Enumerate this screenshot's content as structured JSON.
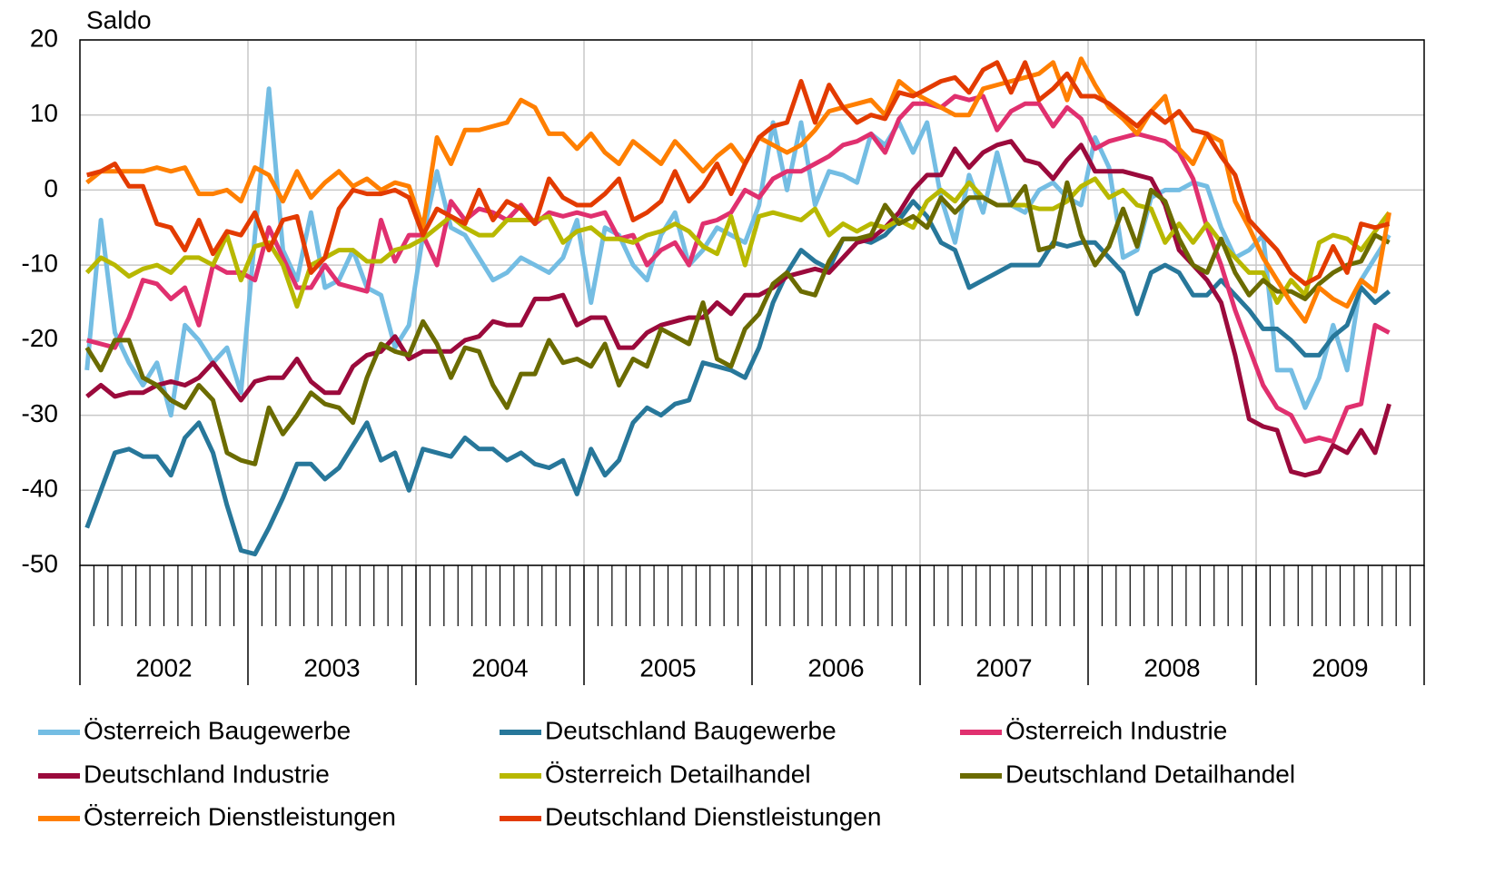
{
  "chart_data": {
    "type": "line",
    "y_label": "Saldo",
    "ylim": [
      -50,
      20
    ],
    "yticks": [
      -50,
      -40,
      -30,
      -20,
      -10,
      0,
      10,
      20
    ],
    "grid": true,
    "categories": [
      null,
      null,
      null,
      null,
      null,
      "2002",
      null,
      null,
      null,
      null,
      null,
      null,
      null,
      null,
      null,
      null,
      null,
      "2003",
      null,
      null,
      null,
      null,
      null,
      null,
      null,
      null,
      null,
      null,
      null,
      "2004",
      null,
      null,
      null,
      null,
      null,
      null,
      null,
      null,
      null,
      null,
      null,
      "2005",
      null,
      null,
      null,
      null,
      null,
      null,
      null,
      null,
      null,
      null,
      null,
      "2006",
      null,
      null,
      null,
      null,
      null,
      null,
      null,
      null,
      null,
      null,
      null,
      "2007",
      null,
      null,
      null,
      null,
      null,
      null,
      null,
      null,
      null,
      null,
      null,
      "2008",
      null,
      null,
      null,
      null,
      null,
      null,
      null,
      null,
      null,
      null,
      null,
      "2009",
      null,
      null,
      null,
      null
    ],
    "series": [
      {
        "name": "Österreich Baugewerbe",
        "color": "#74bde3",
        "values": [
          -24,
          -4,
          -19,
          -23,
          -26,
          -23,
          -30,
          -18,
          -20,
          -23,
          -21,
          -27,
          -6,
          13.5,
          -8,
          -12,
          -3,
          -13,
          -12,
          -8,
          -13,
          -14,
          -21,
          -18,
          -6,
          2.5,
          -5,
          -6,
          -9,
          -12,
          -11,
          -9,
          -10,
          -11,
          -9,
          -4,
          -15,
          -5,
          -6,
          -10,
          -12,
          -6,
          -3,
          -10,
          -8,
          -5,
          -6,
          -7,
          -2,
          9,
          0,
          9,
          -2,
          2.5,
          2,
          1,
          7.5,
          6,
          9,
          5,
          9,
          -1,
          -7,
          2,
          -3,
          5,
          -2,
          -3,
          0,
          1,
          -1,
          -2,
          7,
          3,
          -9,
          -8,
          -1,
          0,
          0,
          1,
          0.5,
          -5,
          -9,
          -8,
          -6,
          -24,
          -24,
          -29,
          -25,
          -18,
          -24,
          -12,
          -9,
          -6
        ]
      },
      {
        "name": "Deutschland Baugewerbe",
        "color": "#27779a",
        "values": [
          -45,
          -40,
          -35,
          -34.5,
          -35.5,
          -35.5,
          -38,
          -33,
          -31,
          -35,
          -42,
          -48,
          -48.5,
          -45,
          -41,
          -36.5,
          -36.5,
          -38.5,
          -37,
          -34,
          -31,
          -36,
          -35,
          -40,
          -34.5,
          -35,
          -35.5,
          -33,
          -34.5,
          -34.5,
          -36,
          -35,
          -36.5,
          -37,
          -36,
          -40.5,
          -34.5,
          -38,
          -36,
          -31,
          -29,
          -30,
          -28.5,
          -28,
          -23,
          -23.5,
          -24,
          -25,
          -21,
          -15,
          -11,
          -8,
          -9.5,
          -10.5,
          -6.5,
          -6.5,
          -7,
          -6,
          -4,
          -1.5,
          -3.5,
          -7,
          -8,
          -13,
          -12,
          -11,
          -10,
          -10,
          -10,
          -7,
          -7.5,
          -7,
          -7,
          -9,
          -11,
          -16.5,
          -11,
          -10,
          -11,
          -14,
          -14,
          -12,
          -14,
          -16,
          -18.5,
          -18.5,
          -20,
          -22,
          -22,
          -19.5,
          -18,
          -13,
          -15,
          -13.5
        ]
      },
      {
        "name": "Österreich Industrie",
        "color": "#e0306f",
        "values": [
          -20,
          -20.5,
          -21,
          -17,
          -12,
          -12.5,
          -14.5,
          -13,
          -18,
          -10,
          -11,
          -11,
          -12,
          -5,
          -9,
          -13,
          -13,
          -10,
          -12.5,
          -13,
          -13.5,
          -4,
          -9.5,
          -6,
          -6,
          -10,
          -1.5,
          -4,
          -2.5,
          -3,
          -4,
          -2,
          -4.5,
          -3,
          -3.5,
          -3,
          -3.5,
          -3,
          -6.5,
          -6,
          -10,
          -8,
          -7,
          -10,
          -4.5,
          -4,
          -3,
          0,
          -1,
          1.5,
          2.5,
          2.5,
          3.5,
          4.5,
          6,
          6.5,
          7.5,
          5,
          9.5,
          11.5,
          11.5,
          11,
          12.5,
          12,
          12.5,
          8,
          10.5,
          11.5,
          11.5,
          8.5,
          11,
          9.5,
          5.5,
          6.5,
          7,
          7.5,
          7,
          6.5,
          5,
          1.5,
          -5,
          -10,
          -16,
          -21,
          -26,
          -29,
          -30,
          -33.5,
          -33,
          -33.5,
          -29,
          -28.5,
          -18,
          -19
        ]
      },
      {
        "name": "Deutschland Industrie",
        "color": "#9b0a3c",
        "values": [
          -27.5,
          -26,
          -27.5,
          -27,
          -27,
          -26,
          -25.5,
          -26,
          -25,
          -23,
          -25.5,
          -28,
          -25.5,
          -25,
          -25,
          -22.5,
          -25.5,
          -27,
          -27,
          -23.5,
          -22,
          -21.5,
          -19.5,
          -22.5,
          -21.5,
          -21.5,
          -21.5,
          -20,
          -19.5,
          -17.5,
          -18,
          -18,
          -14.5,
          -14.5,
          -14,
          -18,
          -17,
          -17,
          -21,
          -21,
          -19,
          -18,
          -17.5,
          -17,
          -17,
          -15,
          -16.5,
          -14,
          -14,
          -13,
          -11.5,
          -11,
          -10.5,
          -11,
          -9,
          -7,
          -6.5,
          -5,
          -3,
          0,
          2,
          2,
          5.5,
          3,
          5,
          6,
          6.5,
          4,
          3.5,
          1.5,
          4,
          6,
          2.5,
          2.5,
          2.5,
          2,
          1.5,
          -2,
          -8,
          -10,
          -12,
          -15,
          -22,
          -30.5,
          -31.5,
          -32,
          -37.5,
          -38,
          -37.5,
          -34,
          -35,
          -32,
          -35,
          -28.5
        ]
      },
      {
        "name": "Österreich Detailhandel",
        "color": "#b8b800",
        "values": [
          -11,
          -9,
          -10,
          -11.5,
          -10.5,
          -10,
          -11,
          -9,
          -9,
          -10,
          -6,
          -12,
          -7.5,
          -7,
          -10,
          -15.5,
          -10,
          -9,
          -8,
          -8,
          -9.5,
          -9.5,
          -8,
          -7.5,
          -6.5,
          -5,
          -3.5,
          -5,
          -6,
          -6,
          -4,
          -4,
          -4,
          -3.5,
          -7,
          -5.5,
          -5,
          -6.5,
          -6.5,
          -7,
          -6,
          -5.5,
          -4.5,
          -5.5,
          -7.5,
          -8.5,
          -3.5,
          -10,
          -3.5,
          -3,
          -3.5,
          -4,
          -2.5,
          -6,
          -4.5,
          -5.5,
          -4.5,
          -5,
          -4,
          -5,
          -1.5,
          0,
          -1.5,
          1,
          -1,
          -2,
          -2,
          -2,
          -2.5,
          -2.5,
          -1.5,
          0.5,
          1.5,
          -1,
          0,
          -2,
          -2.5,
          -7,
          -4.5,
          -7,
          -4.5,
          -7,
          -9,
          -11,
          -11,
          -15,
          -12,
          -14,
          -7,
          -6,
          -6.5,
          -8,
          -5.5,
          -3
        ]
      },
      {
        "name": "Deutschland Detailhandel",
        "color": "#6b6b00",
        "values": [
          -21,
          -24,
          -20,
          -20,
          -25,
          -26,
          -28,
          -29,
          -26,
          -28,
          -35,
          -36,
          -36.5,
          -29,
          -32.5,
          -30,
          -27,
          -28.5,
          -29,
          -31,
          -25,
          -20.5,
          -21.5,
          -22,
          -17.5,
          -20.5,
          -25,
          -21,
          -21.5,
          -26,
          -29,
          -24.5,
          -24.5,
          -20,
          -23,
          -22.5,
          -23.5,
          -20.5,
          -26,
          -22.5,
          -23.5,
          -18.5,
          -19.5,
          -20.5,
          -15,
          -22.5,
          -23.5,
          -18.5,
          -16.5,
          -12.5,
          -11,
          -13.5,
          -14,
          -9.5,
          -6.5,
          -6.5,
          -6,
          -2,
          -4.5,
          -3.5,
          -5,
          -1,
          -3,
          -1,
          -1,
          -2,
          -2,
          0.5,
          -8,
          -7.5,
          1,
          -6,
          -10,
          -7.5,
          -2.5,
          -7.5,
          0,
          -1.5,
          -6.5,
          -10,
          -11,
          -6.5,
          -11,
          -14,
          -12,
          -13.5,
          -13.5,
          -14.5,
          -12.5,
          -11,
          -10,
          -9.5,
          -6,
          -7
        ]
      },
      {
        "name": "Österreich Dienstleistungen",
        "color": "#ff7f00",
        "values": [
          1,
          2.5,
          2.5,
          2.5,
          2.5,
          3,
          2.5,
          3,
          -0.5,
          -0.5,
          0,
          -1.5,
          3,
          2,
          -1.5,
          2.5,
          -1,
          1,
          2.5,
          0.5,
          1.5,
          0,
          1,
          0.5,
          -5,
          7,
          3.5,
          8,
          8,
          8.5,
          9,
          12,
          11,
          7.5,
          7.5,
          5.5,
          7.5,
          5,
          3.5,
          6.5,
          5,
          3.5,
          6.5,
          4.5,
          2.5,
          4.5,
          6,
          3.5,
          7,
          6,
          5,
          6,
          8,
          10.5,
          11,
          11.5,
          12,
          10,
          14.5,
          13,
          12,
          11,
          10,
          10,
          13.5,
          14,
          14.5,
          15,
          15.5,
          17,
          12,
          17.5,
          14,
          11,
          9.5,
          7.5,
          10.5,
          12.5,
          5.5,
          3.5,
          7.5,
          6.5,
          -1.5,
          -5,
          -9,
          -12,
          -15,
          -17.5,
          -13,
          -14.5,
          -15.5,
          -12,
          -13.5,
          -3
        ]
      },
      {
        "name": "Deutschland Dienstleistungen",
        "color": "#e33b00",
        "values": [
          2,
          2.5,
          3.5,
          0.5,
          0.5,
          -4.5,
          -5,
          -8,
          -4,
          -8.5,
          -5.5,
          -6,
          -3,
          -8,
          -4,
          -3.5,
          -11,
          -9,
          -2.5,
          0,
          -0.5,
          -0.5,
          0,
          -1,
          -6,
          -2.5,
          -3.5,
          -4.5,
          0,
          -4,
          -1.5,
          -2.5,
          -4.5,
          1.5,
          -1,
          -2,
          -2,
          -0.5,
          1.5,
          -4,
          -3,
          -1.5,
          2.5,
          -1.5,
          0.5,
          3.5,
          -0.5,
          3.5,
          7,
          8.5,
          9,
          14.5,
          9,
          14,
          11,
          9,
          10,
          9.5,
          13,
          12.5,
          13.5,
          14.5,
          15,
          13,
          16,
          17,
          13,
          17,
          12,
          13.5,
          15.5,
          12.5,
          12.5,
          11.5,
          10,
          8.5,
          10.5,
          9,
          10.5,
          8,
          7.5,
          4.5,
          2,
          -4,
          -6,
          -8,
          -11,
          -12.5,
          -11.5,
          -7.5,
          -11,
          -4.5,
          -5,
          -4.5
        ]
      }
    ]
  }
}
